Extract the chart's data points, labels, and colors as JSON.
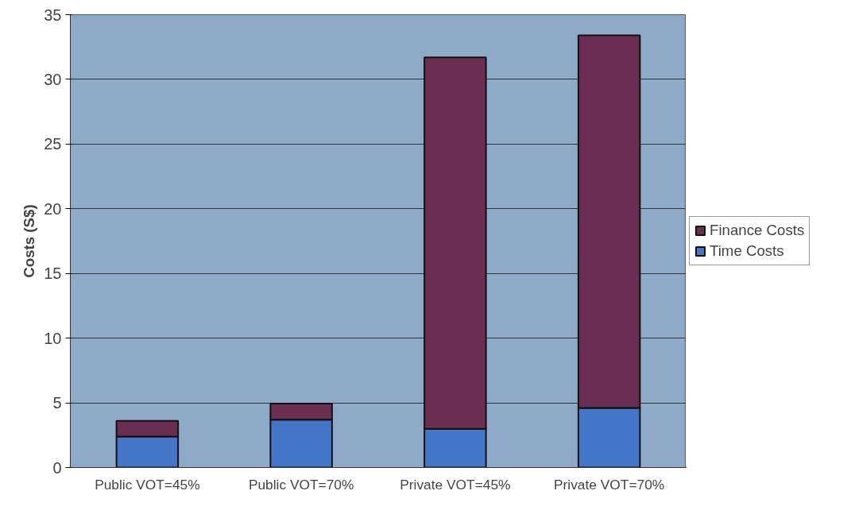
{
  "chart_data": {
    "type": "bar",
    "stacked": true,
    "ylabel": "Costs (S$)",
    "categories": [
      "Public VOT=45%",
      "Public VOT=70%",
      "Private VOT=45%",
      "Private VOT=70%"
    ],
    "series": [
      {
        "name": "Time Costs",
        "color": "#4676c8",
        "values": [
          2.4,
          3.7,
          3.0,
          4.6
        ]
      },
      {
        "name": "Finance Costs",
        "color": "#6a2f50",
        "values": [
          1.2,
          1.25,
          28.7,
          28.8
        ]
      }
    ],
    "ylim": [
      0,
      35
    ],
    "yticks": [
      0,
      5,
      10,
      15,
      20,
      25,
      30,
      35
    ],
    "grid": "y",
    "legend": "right"
  }
}
